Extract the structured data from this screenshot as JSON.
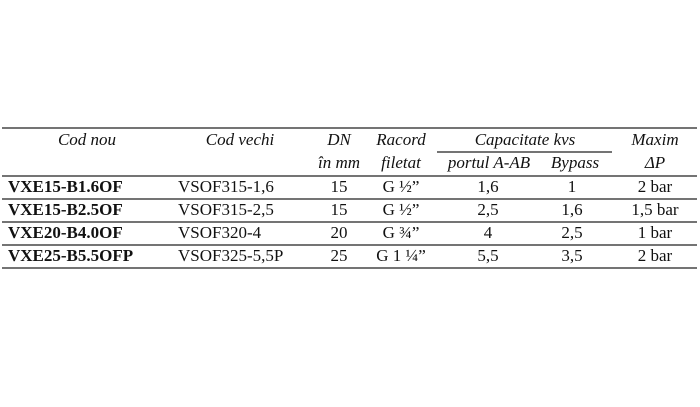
{
  "table": {
    "header": {
      "row1": [
        "Cod nou",
        "Cod vechi",
        "DN",
        "Racord",
        "Capacitate kvs",
        "Maxim"
      ],
      "row2": [
        "în mm",
        "filetat",
        "portul A-AB",
        "Bypass",
        "ΔP"
      ]
    },
    "rows": [
      [
        "VXE15-B1.6OF",
        "VSOF315-1,6",
        "15",
        "G ½”",
        "1,6",
        "1",
        "2 bar"
      ],
      [
        "VXE15-B2.5OF",
        "VSOF315-2,5",
        "15",
        "G ½”",
        "2,5",
        "1,6",
        "1,5 bar"
      ],
      [
        "VXE20-B4.0OF",
        "VSOF320-4",
        "20",
        "G ¾”",
        "4",
        "2,5",
        "1 bar"
      ],
      [
        "VXE25-B5.5OFP",
        "VSOF325-5,5P",
        "25",
        "G 1 ¼”",
        "5,5",
        "3,5",
        "2 bar"
      ]
    ]
  }
}
